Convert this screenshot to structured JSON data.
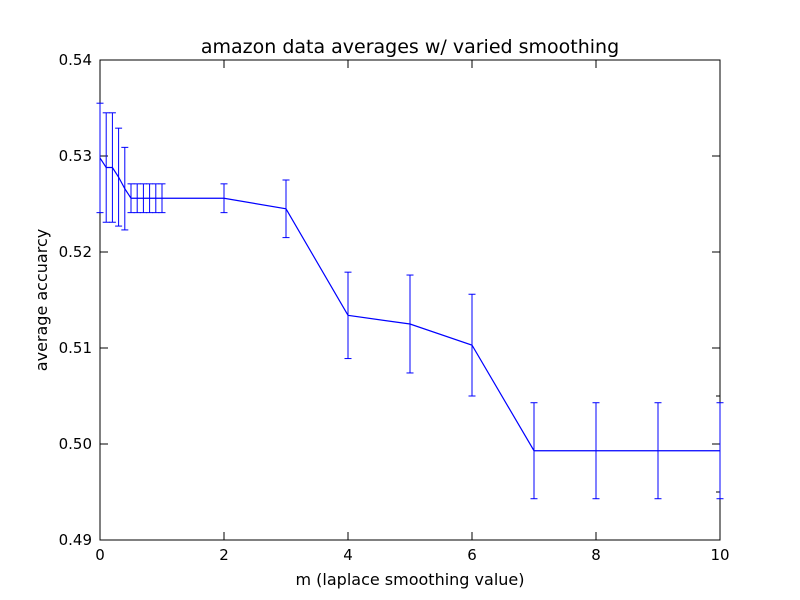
{
  "chart_data": {
    "type": "line",
    "title": "amazon data averages w/ varied smoothing",
    "xlabel": "m (laplace smoothing value)",
    "ylabel": "average accuarcy",
    "xlim": [
      0,
      10
    ],
    "ylim": [
      0.49,
      0.54
    ],
    "x_ticks": [
      0,
      2,
      4,
      6,
      8,
      10
    ],
    "x_tick_labels": [
      "0",
      "2",
      "4",
      "6",
      "8",
      "10"
    ],
    "y_ticks": [
      0.49,
      0.5,
      0.51,
      0.52,
      0.53,
      0.54
    ],
    "y_tick_labels": [
      "0.49",
      "0.50",
      "0.51",
      "0.52",
      "0.53",
      "0.54"
    ],
    "grid": false,
    "legend": "none",
    "series": [
      {
        "color": "#0000ff",
        "x": [
          0.0,
          0.1,
          0.2,
          0.3,
          0.4,
          0.5,
          0.6,
          0.7,
          0.8,
          0.9,
          1.0,
          2,
          3,
          4,
          5,
          6,
          7,
          8,
          9,
          10
        ],
        "y": [
          0.5298,
          0.5288,
          0.5288,
          0.5278,
          0.5266,
          0.5256,
          0.5256,
          0.5256,
          0.5256,
          0.5256,
          0.5256,
          0.5256,
          0.5245,
          0.5134,
          0.5125,
          0.5103,
          0.4993,
          0.4993,
          0.4993,
          0.4993
        ],
        "yerr": [
          0.0057,
          0.0057,
          0.0057,
          0.0051,
          0.0043,
          0.0015,
          0.0015,
          0.0015,
          0.0015,
          0.0015,
          0.0015,
          0.0015,
          0.003,
          0.0045,
          0.0051,
          0.0053,
          0.005,
          0.005,
          0.005,
          0.005
        ]
      }
    ]
  }
}
